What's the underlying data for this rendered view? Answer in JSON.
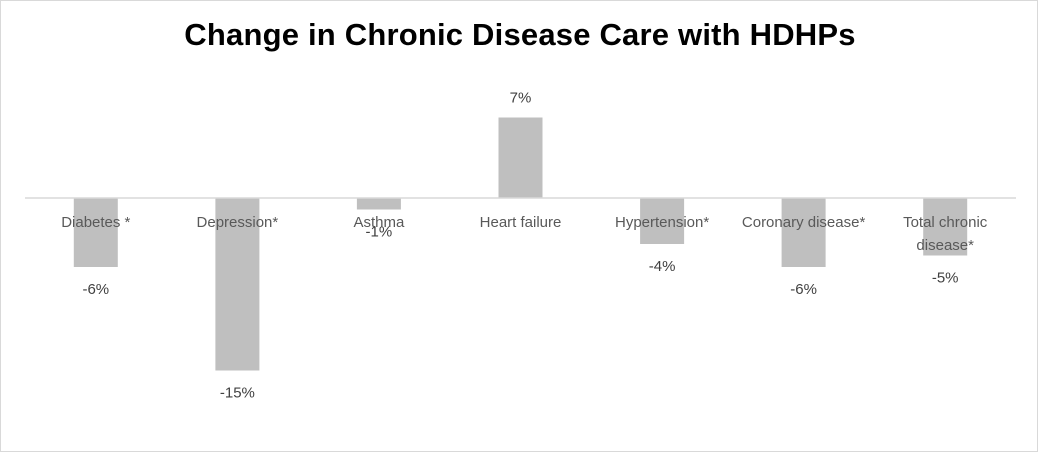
{
  "chart_data": {
    "type": "bar",
    "title": "Change in Chronic Disease Care with HDHPs",
    "xlabel": "",
    "ylabel": "",
    "categories": [
      [
        "Diabetes *"
      ],
      [
        "Depression*"
      ],
      [
        "Asthma"
      ],
      [
        "Heart failure"
      ],
      [
        "Hypertension*"
      ],
      [
        "Coronary disease*"
      ],
      [
        "Total chronic",
        "disease*"
      ]
    ],
    "values": [
      -6,
      -15,
      -1,
      7,
      -4,
      -6,
      -5
    ],
    "data_labels": [
      "-6%",
      "-15%",
      "-1%",
      "7%",
      "-4%",
      "-6%",
      "-5%"
    ],
    "ylim": [
      -17,
      9
    ],
    "grid": false,
    "legend": "none",
    "colors": {
      "bar": "#bfbfbf",
      "axis": "#d9d9d9",
      "category_text": "#595959",
      "label_text": "#404040",
      "title_text": "#000000"
    }
  }
}
